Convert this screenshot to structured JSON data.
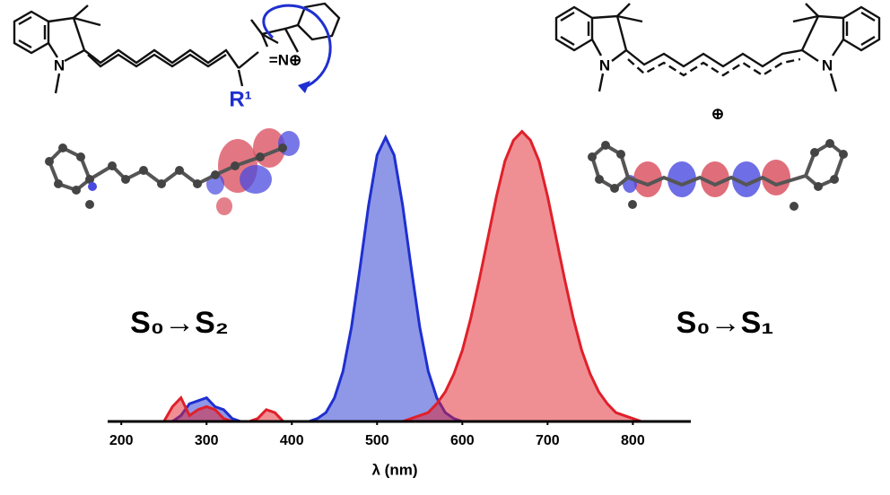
{
  "chart_data": {
    "type": "area",
    "xlabel": "λ (nm)",
    "annotations": [
      "S₀→S₂",
      "S₀→S₁"
    ],
    "structure_labels": [
      "N",
      "=N⊕",
      "R¹",
      "N",
      "N",
      "⊕"
    ],
    "x": [
      240,
      250,
      260,
      270,
      280,
      290,
      300,
      310,
      320,
      330,
      340,
      350,
      360,
      370,
      380,
      390,
      400,
      410,
      420,
      430,
      440,
      450,
      460,
      470,
      480,
      490,
      500,
      510,
      520,
      530,
      540,
      550,
      560,
      570,
      580,
      590,
      600,
      610,
      620,
      630,
      640,
      650,
      660,
      670,
      680,
      690,
      700,
      710,
      720,
      730,
      740,
      750,
      760,
      770,
      780,
      790,
      800,
      810,
      820,
      830,
      840,
      850,
      860
    ],
    "series": [
      {
        "color": "#1f2fd0",
        "values": [
          0,
          0,
          0,
          0.02,
          0.06,
          0.07,
          0.08,
          0.05,
          0.04,
          0.01,
          0,
          0,
          0,
          0,
          0,
          0,
          0,
          0,
          0,
          0.01,
          0.03,
          0.08,
          0.17,
          0.32,
          0.52,
          0.73,
          0.9,
          0.96,
          0.9,
          0.73,
          0.52,
          0.32,
          0.17,
          0.08,
          0.03,
          0.01,
          0,
          0,
          0,
          0,
          0,
          0,
          0,
          0,
          0,
          0,
          0,
          0,
          0,
          0,
          0,
          0,
          0,
          0,
          0,
          0,
          0,
          0,
          0,
          0,
          0,
          0,
          0
        ]
      },
      {
        "color": "#e0202a",
        "values": [
          0,
          0,
          0.05,
          0.08,
          0.02,
          0.04,
          0.05,
          0.04,
          0.01,
          0,
          0,
          0,
          0.01,
          0.04,
          0.03,
          0,
          0,
          0,
          0,
          0,
          0,
          0,
          0,
          0,
          0,
          0,
          0,
          0,
          0,
          0,
          0.01,
          0.02,
          0.03,
          0.06,
          0.1,
          0.16,
          0.24,
          0.35,
          0.48,
          0.62,
          0.76,
          0.88,
          0.95,
          0.98,
          0.95,
          0.88,
          0.76,
          0.62,
          0.48,
          0.35,
          0.24,
          0.16,
          0.1,
          0.06,
          0.03,
          0.02,
          0.01,
          0,
          0,
          0,
          0,
          0,
          0
        ]
      }
    ],
    "xlim": [
      184,
      868
    ],
    "ylim": [
      0,
      1
    ],
    "xticks": [
      200,
      300,
      400,
      500,
      600,
      700,
      800
    ]
  }
}
